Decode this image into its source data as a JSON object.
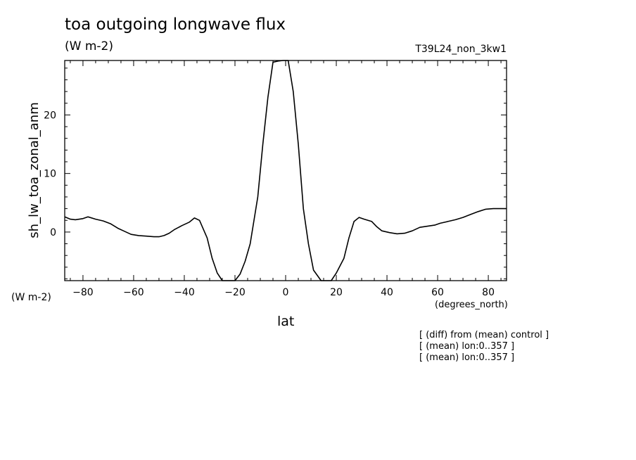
{
  "title": "toa outgoing longwave flux",
  "units": "(W m-2)",
  "run_label": "T39L24_non_3kw1",
  "y_units_label": "(W m-2)",
  "x_units_label": "(degrees_north)",
  "notes": [
    "[ (diff) from (mean) control ]",
    "[ (mean) lon:0..357 ]",
    "[ (mean) lon:0..357 ]"
  ],
  "chart_data": {
    "type": "line",
    "title": "toa outgoing longwave flux",
    "xlabel": "lat",
    "ylabel": "sh_lw_toa_zonal_anm",
    "xlim": [
      -87.2,
      87.2
    ],
    "ylim": [
      -8.3,
      29.3
    ],
    "x_ticks": [
      -80,
      -60,
      -40,
      -20,
      0,
      20,
      40,
      60,
      80
    ],
    "y_ticks": [
      0,
      10,
      20
    ],
    "grid": false,
    "line_color": "#000000",
    "series": [
      {
        "x": [
          -87.2,
          -85,
          -83,
          -80,
          -78,
          -75,
          -72,
          -69,
          -66,
          -64,
          -61,
          -58,
          -55,
          -52,
          -50,
          -48,
          -46,
          -44,
          -41,
          -38,
          -36,
          -34,
          -31,
          -29,
          -27,
          -25,
          -23,
          -20,
          -18,
          -16,
          -14,
          -11,
          -9,
          -7,
          -5,
          -3,
          -1,
          1,
          3,
          5,
          7,
          9,
          11,
          14,
          16,
          18,
          20,
          23,
          25,
          27,
          29,
          31,
          34,
          36,
          38,
          41,
          44,
          47,
          50,
          53,
          56,
          59,
          61,
          64,
          67,
          70,
          73,
          76,
          79,
          82,
          85,
          87.2
        ],
        "y": [
          2.6,
          2.2,
          2.1,
          2.3,
          2.6,
          2.2,
          1.9,
          1.4,
          0.6,
          0.2,
          -0.4,
          -0.6,
          -0.7,
          -0.8,
          -0.8,
          -0.6,
          -0.2,
          0.4,
          1.1,
          1.7,
          2.4,
          2.0,
          -1.0,
          -4.5,
          -7.0,
          -8.3,
          -8.3,
          -8.3,
          -7.2,
          -5.0,
          -2.0,
          6.0,
          15.0,
          23.0,
          29.0,
          29.2,
          29.3,
          29.3,
          24.0,
          15.0,
          4.0,
          -2.0,
          -6.5,
          -8.3,
          -8.3,
          -8.3,
          -7.0,
          -4.5,
          -1.0,
          1.8,
          2.5,
          2.2,
          1.8,
          0.9,
          0.2,
          -0.1,
          -0.3,
          -0.2,
          0.2,
          0.8,
          1.0,
          1.2,
          1.5,
          1.8,
          2.1,
          2.5,
          3.0,
          3.5,
          3.9,
          4.0,
          4.0,
          4.0
        ]
      }
    ]
  }
}
